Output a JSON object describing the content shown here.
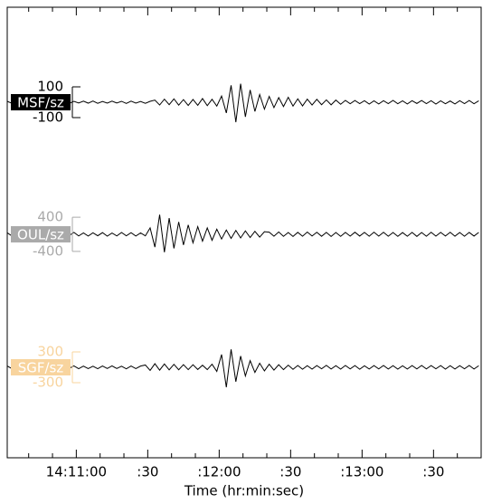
{
  "chart_data": {
    "type": "seismogram",
    "xlabel": "Time (hr:min:sec)",
    "xlim": [
      51031,
      51230
    ],
    "xticks": [
      {
        "value": 51060,
        "label": "14:11:00"
      },
      {
        "value": 51090,
        "label": ":30"
      },
      {
        "value": 51120,
        "label": ":12:00"
      },
      {
        "value": 51150,
        "label": ":30"
      },
      {
        "value": 51180,
        "label": ":13:00"
      },
      {
        "value": 51210,
        "label": ":30"
      }
    ],
    "xminorticks": [
      51040,
      51050,
      51070,
      51080,
      51100,
      51110,
      51130,
      51140,
      51160,
      51170,
      51190,
      51200,
      51220
    ],
    "x": [
      51031,
      51033,
      51035,
      51037,
      51039,
      51041,
      51043,
      51045,
      51047,
      51049,
      51051,
      51053,
      51055,
      51057,
      51059,
      51061,
      51063,
      51065,
      51067,
      51069,
      51071,
      51073,
      51075,
      51077,
      51079,
      51081,
      51083,
      51085,
      51087,
      51089,
      51091,
      51093,
      51095,
      51097,
      51099,
      51101,
      51103,
      51105,
      51107,
      51109,
      51111,
      51113,
      51115,
      51117,
      51119,
      51121,
      51123,
      51125,
      51127,
      51129,
      51131,
      51133,
      51135,
      51137,
      51139,
      51141,
      51143,
      51145,
      51147,
      51149,
      51151,
      51153,
      51155,
      51157,
      51159,
      51161,
      51163,
      51165,
      51167,
      51169,
      51171,
      51173,
      51175,
      51177,
      51179,
      51181,
      51183,
      51185,
      51187,
      51189,
      51191,
      51193,
      51195,
      51197,
      51199,
      51201,
      51203,
      51205,
      51207,
      51209,
      51211,
      51213,
      51215,
      51217,
      51219,
      51221,
      51223,
      51225,
      51227,
      51229
    ],
    "series": [
      {
        "name": "MSF/sz",
        "color": "#000000",
        "label_color": "#000000",
        "ylim": [
          -500,
          500
        ],
        "yticks": [
          100,
          -100
        ],
        "values": [
          6,
          -7,
          5,
          -8,
          7,
          -6,
          8,
          -5,
          6,
          -7,
          5,
          -6,
          7,
          -8,
          6,
          -5,
          7,
          -6,
          8,
          -7,
          5,
          -6,
          7,
          -5,
          6,
          -8,
          7,
          -6,
          5,
          -7,
          6,
          14,
          -18,
          20,
          -16,
          22,
          -19,
          17,
          -21,
          18,
          -20,
          24,
          -22,
          19,
          -25,
          40,
          -70,
          110,
          -130,
          120,
          -95,
          80,
          -60,
          50,
          -45,
          38,
          -35,
          30,
          -28,
          32,
          -25,
          22,
          -24,
          20,
          -18,
          19,
          -16,
          15,
          -17,
          14,
          -13,
          12,
          -10,
          11,
          -9,
          10,
          -12,
          9,
          -11,
          10,
          -9,
          12,
          -10,
          9,
          -11,
          10,
          -8,
          11,
          -9,
          10,
          -12,
          9,
          -10,
          8,
          -11,
          10,
          -9,
          11,
          -10,
          9
        ]
      },
      {
        "name": "OUL/sz",
        "color": "#000000",
        "label_color": "#aaaaaa",
        "ylim": [
          -1800,
          1800
        ],
        "yticks": [
          400,
          -400
        ],
        "values": [
          35,
          -40,
          30,
          -45,
          38,
          -32,
          42,
          -36,
          30,
          -44,
          38,
          -35,
          40,
          -30,
          45,
          -38,
          33,
          -41,
          36,
          -34,
          39,
          -43,
          31,
          -37,
          42,
          -35,
          38,
          -40,
          33,
          -36,
          150,
          -300,
          460,
          -420,
          380,
          -330,
          290,
          -250,
          220,
          -200,
          180,
          -160,
          150,
          -140,
          120,
          -110,
          100,
          -95,
          90,
          -85,
          80,
          -75,
          70,
          -65,
          60,
          50,
          -45,
          55,
          -48,
          42,
          -50,
          46,
          -44,
          52,
          -40,
          48,
          -46,
          44,
          -50,
          42,
          -47,
          45,
          -43,
          49,
          -41,
          46,
          -44,
          50,
          -42,
          47,
          -45,
          43,
          -48,
          41,
          -46,
          44,
          -49,
          42,
          -45,
          47,
          -43,
          45,
          -40,
          48,
          -44,
          42,
          -46,
          44,
          -41,
          45
        ]
      },
      {
        "name": "SGF/sz",
        "color": "#000000",
        "label_color": "#f8d49e",
        "ylim": [
          -1500,
          1500
        ],
        "yticks": [
          300,
          -300
        ],
        "values": [
          25,
          -28,
          22,
          -30,
          26,
          -24,
          29,
          -21,
          27,
          -25,
          23,
          -29,
          26,
          -22,
          28,
          -27,
          24,
          -26,
          21,
          -28,
          25,
          -23,
          27,
          -24,
          22,
          -29,
          26,
          -25,
          24,
          45,
          -60,
          70,
          -55,
          65,
          -50,
          58,
          -48,
          52,
          -45,
          50,
          -42,
          40,
          -45,
          60,
          -80,
          250,
          -390,
          350,
          -280,
          220,
          -170,
          130,
          -100,
          80,
          -70,
          60,
          -55,
          50,
          -45,
          42,
          -40,
          35,
          -38,
          32,
          -36,
          34,
          -30,
          37,
          -33,
          31,
          -35,
          36,
          -32,
          34,
          -37,
          30,
          -34,
          33,
          -31,
          36,
          -33,
          32,
          -35,
          30,
          -34,
          33,
          -31,
          35,
          -32,
          34,
          -30,
          33,
          -36,
          31,
          -34,
          32,
          -30,
          35,
          -33,
          31
        ]
      }
    ]
  }
}
